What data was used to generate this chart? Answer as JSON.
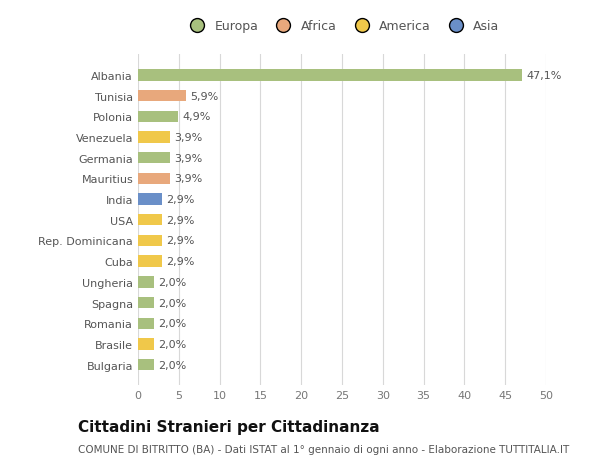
{
  "categories": [
    "Bulgaria",
    "Brasile",
    "Romania",
    "Spagna",
    "Ungheria",
    "Cuba",
    "Rep. Dominicana",
    "USA",
    "India",
    "Mauritius",
    "Germania",
    "Venezuela",
    "Polonia",
    "Tunisia",
    "Albania"
  ],
  "values": [
    2.0,
    2.0,
    2.0,
    2.0,
    2.0,
    2.9,
    2.9,
    2.9,
    2.9,
    3.9,
    3.9,
    3.9,
    4.9,
    5.9,
    47.1
  ],
  "labels": [
    "2,0%",
    "2,0%",
    "2,0%",
    "2,0%",
    "2,0%",
    "2,9%",
    "2,9%",
    "2,9%",
    "2,9%",
    "3,9%",
    "3,9%",
    "3,9%",
    "4,9%",
    "5,9%",
    "47,1%"
  ],
  "colors": [
    "#a8c07e",
    "#f0c84a",
    "#a8c07e",
    "#a8c07e",
    "#a8c07e",
    "#f0c84a",
    "#f0c84a",
    "#f0c84a",
    "#6a8fc8",
    "#e8a87c",
    "#a8c07e",
    "#f0c84a",
    "#a8c07e",
    "#e8a87c",
    "#a8c07e"
  ],
  "legend_labels": [
    "Europa",
    "Africa",
    "America",
    "Asia"
  ],
  "legend_colors": [
    "#a8c07e",
    "#e8a87c",
    "#f0c84a",
    "#6a8fc8"
  ],
  "title": "Cittadini Stranieri per Cittadinanza",
  "subtitle": "COMUNE DI BITRITTO (BA) - Dati ISTAT al 1° gennaio di ogni anno - Elaborazione TUTTITALIA.IT",
  "xlim": [
    0,
    50
  ],
  "xticks": [
    0,
    5,
    10,
    15,
    20,
    25,
    30,
    35,
    40,
    45,
    50
  ],
  "background_color": "#ffffff",
  "grid_color": "#d8d8d8",
  "bar_height": 0.55,
  "title_fontsize": 11,
  "subtitle_fontsize": 7.5,
  "label_fontsize": 8,
  "tick_fontsize": 8,
  "legend_fontsize": 9
}
